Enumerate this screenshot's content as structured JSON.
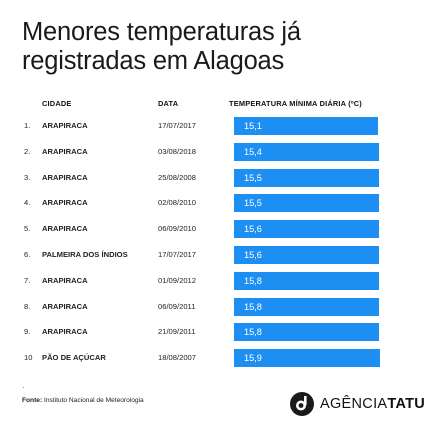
{
  "title_line1": "Menores temperaturas já",
  "title_line2": "registradas em Alagoas",
  "columns": {
    "city": "CIDADE",
    "date": "DATA",
    "temp": "TEMPERATURA MÍNIMA DIÁRIA (ºC)"
  },
  "rows": [
    {
      "rank": "1.",
      "city": "ARAPIRACA",
      "date": "17/07/2017",
      "value": 15.1,
      "label": "15,1"
    },
    {
      "rank": "2.",
      "city": "ARAPIRACA",
      "date": "03/08/2018",
      "value": 15.4,
      "label": "15,4"
    },
    {
      "rank": "3.",
      "city": "ARAPIRACA",
      "date": "25/08/2008",
      "value": 15.5,
      "label": "15,5"
    },
    {
      "rank": "4.",
      "city": "ARAPIRACA",
      "date": "02/08/2010",
      "value": 15.5,
      "label": "15,5"
    },
    {
      "rank": "5.",
      "city": "ARAPIRACA",
      "date": "06/09/2010",
      "value": 15.6,
      "label": "15,6"
    },
    {
      "rank": "6.",
      "city": "PALMEIRA DOS ÍNDIOS",
      "date": "17/07/2017",
      "value": 15.6,
      "label": "15,6"
    },
    {
      "rank": "7.",
      "city": "ARAPIRACA",
      "date": "01/09/2012",
      "value": 15.8,
      "label": "15,8"
    },
    {
      "rank": "8.",
      "city": "ARAPIRACA",
      "date": "06/09/2011",
      "value": 15.8,
      "label": "15,8"
    },
    {
      "rank": "9.",
      "city": "ARAPIRACA",
      "date": "21/09/2011",
      "value": 15.8,
      "label": "15,8"
    },
    {
      "rank": "10",
      "city": "PÃO DE AÇÚCAR",
      "date": "18/08/2007",
      "value": 15.9,
      "label": "15,9"
    }
  ],
  "chart_data": {
    "type": "bar",
    "orientation": "horizontal",
    "title": "Menores temperaturas já registradas em Alagoas",
    "xlabel": "TEMPERATURA MÍNIMA DIÁRIA (ºC)",
    "categories": [
      "ARAPIRACA",
      "ARAPIRACA",
      "ARAPIRACA",
      "ARAPIRACA",
      "ARAPIRACA",
      "PALMEIRA DOS ÍNDIOS",
      "ARAPIRACA",
      "ARAPIRACA",
      "ARAPIRACA",
      "PÃO DE AÇÚCAR"
    ],
    "values": [
      15.1,
      15.4,
      15.5,
      15.5,
      15.6,
      15.6,
      15.8,
      15.8,
      15.8,
      15.9
    ],
    "bar_color": "#1e8ff2",
    "grid": false,
    "legend": "none"
  },
  "footer": {
    "dot": "·",
    "source_label": "Fonte:",
    "source_text": "Instituto Nacional de Meteorologia",
    "logo_light": "AGÊNCIA",
    "logo_bold": "TATU",
    "logo_icon": "tatu-logo-icon",
    "logo_color": "#1a1a1a"
  }
}
